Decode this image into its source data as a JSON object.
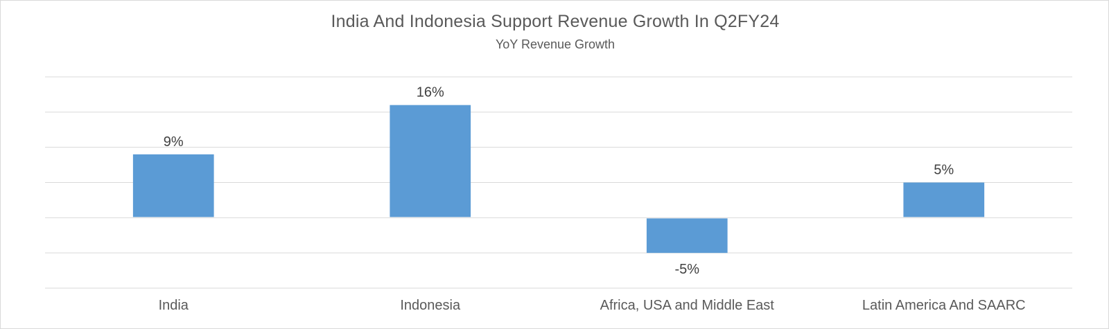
{
  "chart_data": {
    "type": "bar",
    "title": "India And Indonesia Support Revenue Growth In Q2FY24",
    "subtitle": "YoY Revenue Growth",
    "categories": [
      "India",
      "Indonesia",
      "Africa, USA and Middle East",
      "Latin America And SAARC"
    ],
    "values": [
      9,
      16,
      -5,
      5
    ],
    "value_labels": [
      "9%",
      "16%",
      "-5%",
      "5%"
    ],
    "unit": "%",
    "ylim": [
      -10,
      20
    ],
    "grid_step": 5,
    "grid": true,
    "legend": "none",
    "bar_color": "#5b9bd5"
  }
}
